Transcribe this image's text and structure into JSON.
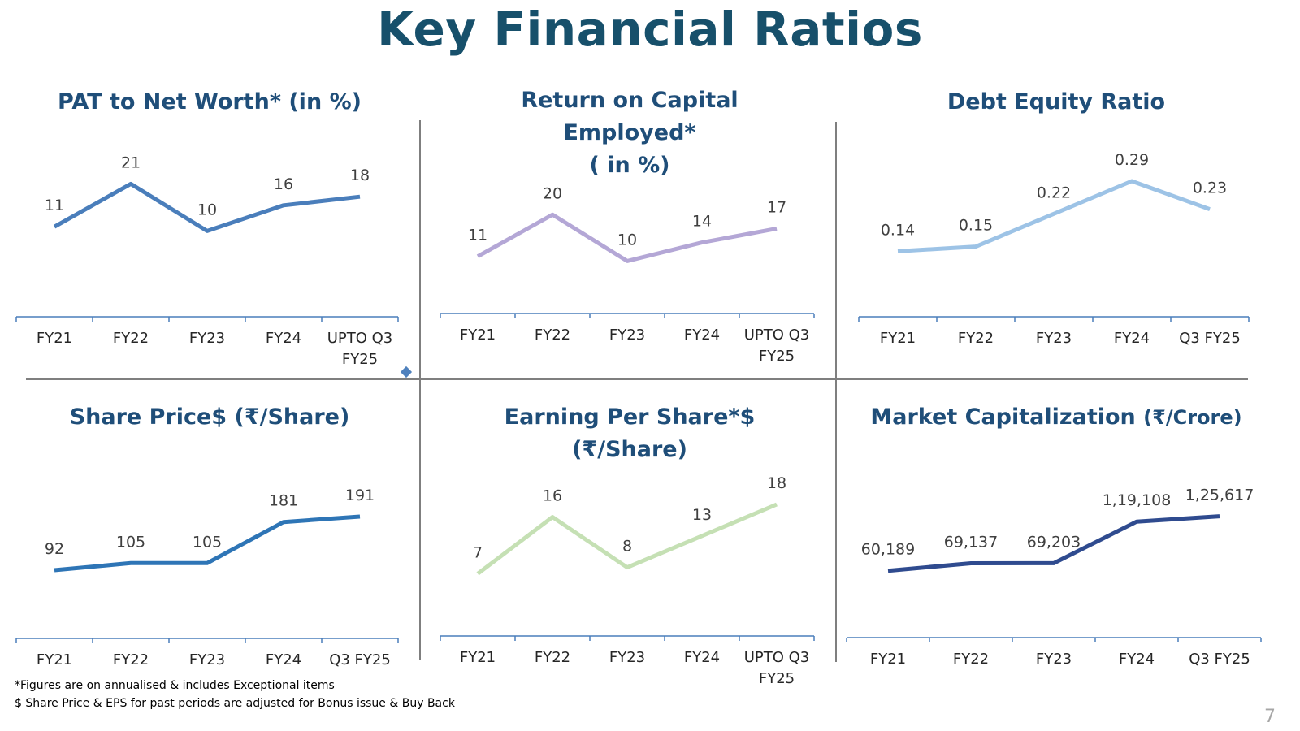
{
  "page": {
    "title": "Key Financial Ratios",
    "page_number": "7",
    "footnotes": [
      "*Figures are on annualised & includes Exceptional items",
      "$ Share Price & EPS for past periods are adjusted for Bonus issue & Buy Back"
    ]
  },
  "chart_data": [
    {
      "type": "line",
      "title_lines": [
        "PAT to Net Worth* (in %)"
      ],
      "title_unit": "",
      "categories": [
        [
          "FY21"
        ],
        [
          "FY22"
        ],
        [
          "FY23"
        ],
        [
          "FY24"
        ],
        [
          "UPTO Q3",
          "FY25"
        ]
      ],
      "values": [
        11,
        21,
        10,
        16,
        18
      ],
      "labels": [
        "11",
        "21",
        "10",
        "16",
        "18"
      ],
      "color": "#4a7ebb",
      "ylim": [
        -10,
        26
      ]
    },
    {
      "type": "line",
      "title_lines": [
        "Return on Capital",
        "Employed*",
        "( in %)"
      ],
      "title_unit": "",
      "categories": [
        [
          "FY21"
        ],
        [
          "FY22"
        ],
        [
          "FY23"
        ],
        [
          "FY24"
        ],
        [
          "UPTO Q3",
          "FY25"
        ]
      ],
      "values": [
        11,
        20,
        10,
        14,
        17
      ],
      "labels": [
        "11",
        "20",
        "10",
        "14",
        "17"
      ],
      "color": "#b4a7d6",
      "ylim": [
        -2,
        26
      ]
    },
    {
      "type": "line",
      "title_lines": [
        "Debt Equity Ratio"
      ],
      "title_unit": "",
      "categories": [
        [
          "FY21"
        ],
        [
          "FY22"
        ],
        [
          "FY23"
        ],
        [
          "FY24"
        ],
        [
          "Q3 FY25"
        ]
      ],
      "values": [
        0.14,
        0.15,
        0.22,
        0.29,
        0.23
      ],
      "labels": [
        "0.14",
        "0.15",
        "0.22",
        "0.29",
        "0.23"
      ],
      "color": "#9dc3e6",
      "ylim": [
        0.0,
        0.33
      ]
    },
    {
      "type": "line",
      "title_lines": [
        "Share Price$ (₹/Share)"
      ],
      "title_unit": "",
      "categories": [
        [
          "FY21"
        ],
        [
          "FY22"
        ],
        [
          "FY23"
        ],
        [
          "FY24"
        ],
        [
          "Q3 FY25"
        ]
      ],
      "values": [
        92,
        105,
        105,
        181,
        191
      ],
      "labels": [
        "92",
        "105",
        "105",
        "181",
        "191"
      ],
      "color": "#2e75b6",
      "ylim": [
        -40,
        260
      ]
    },
    {
      "type": "line",
      "title_lines": [
        "Earning Per Share*$",
        "(₹/Share)"
      ],
      "title_unit": "",
      "categories": [
        [
          "FY21"
        ],
        [
          "FY22"
        ],
        [
          "FY23"
        ],
        [
          "FY24"
        ],
        [
          "UPTO Q3",
          "FY25"
        ]
      ],
      "values": [
        7,
        16,
        8,
        13,
        18
      ],
      "labels": [
        "7",
        "16",
        "8",
        "13",
        "18"
      ],
      "color": "#c5e0b4",
      "ylim": [
        -3,
        22
      ]
    },
    {
      "type": "line",
      "title_lines": [
        "Market Capitalization"
      ],
      "title_unit": "(₹/Crore)",
      "categories": [
        [
          "FY21"
        ],
        [
          "FY22"
        ],
        [
          "FY23"
        ],
        [
          "FY24"
        ],
        [
          "Q3 FY25"
        ]
      ],
      "values": [
        60189,
        69137,
        69203,
        119108,
        125617
      ],
      "labels": [
        "60,189",
        "69,137",
        "69,203",
        "1,19,108",
        "1,25,617"
      ],
      "color": "#2f4b8f",
      "ylim": [
        -20000,
        170000
      ]
    }
  ]
}
